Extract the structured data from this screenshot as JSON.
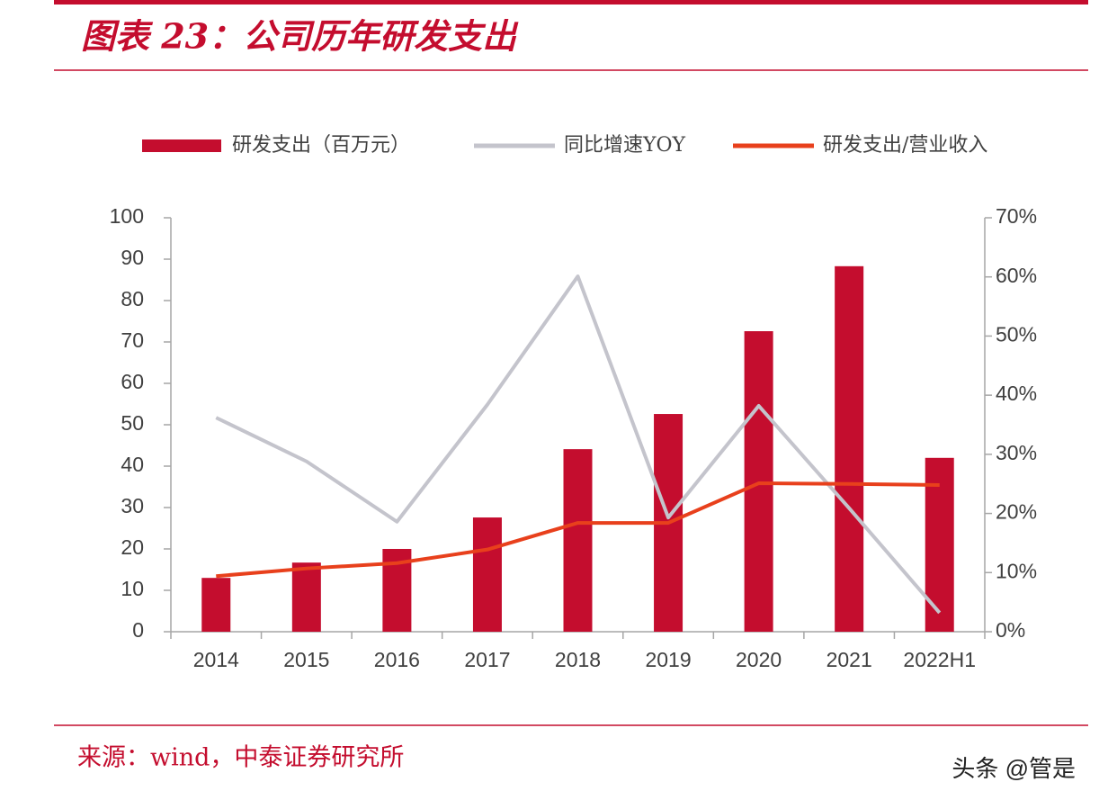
{
  "chart_data": {
    "type": "bar",
    "title": "图表 23：公司历年研发支出",
    "source": "来源：wind，中泰证券研究所",
    "categories": [
      "2014",
      "2015",
      "2016",
      "2017",
      "2018",
      "2019",
      "2020",
      "2021",
      "2022H1"
    ],
    "series": [
      {
        "name": "研发支出（百万元）",
        "type": "bar",
        "axis": "y",
        "color": "#c40d2e",
        "values": [
          13.0,
          16.7,
          20.0,
          27.6,
          44.1,
          52.6,
          72.6,
          88.3,
          42.0
        ]
      },
      {
        "name": "同比增速YOY",
        "type": "line",
        "axis": "y2",
        "color": "#c4c4cc",
        "values": [
          36.2,
          28.8,
          18.6,
          38.4,
          60.1,
          19.3,
          38.2,
          20.9,
          3.2
        ]
      },
      {
        "name": "研发支出/营业收入",
        "type": "line",
        "axis": "y2",
        "color": "#e8401c",
        "values": [
          9.4,
          10.7,
          11.6,
          13.9,
          18.4,
          18.4,
          25.1,
          25.0,
          24.8
        ]
      }
    ],
    "ylim": [
      0,
      100
    ],
    "yticks": [
      0,
      10,
      20,
      30,
      40,
      50,
      60,
      70,
      80,
      90,
      100
    ],
    "y2lim": [
      0,
      70
    ],
    "y2ticks": [
      {
        "value": 0,
        "label": "0%"
      },
      {
        "value": 10,
        "label": "10%"
      },
      {
        "value": 20,
        "label": "20%"
      },
      {
        "value": 30,
        "label": "30%"
      },
      {
        "value": 40,
        "label": "40%"
      },
      {
        "value": 50,
        "label": "50%"
      },
      {
        "value": 60,
        "label": "60%"
      },
      {
        "value": 70,
        "label": "70%"
      }
    ],
    "legend": "top"
  },
  "watermark": "头条 @管是"
}
